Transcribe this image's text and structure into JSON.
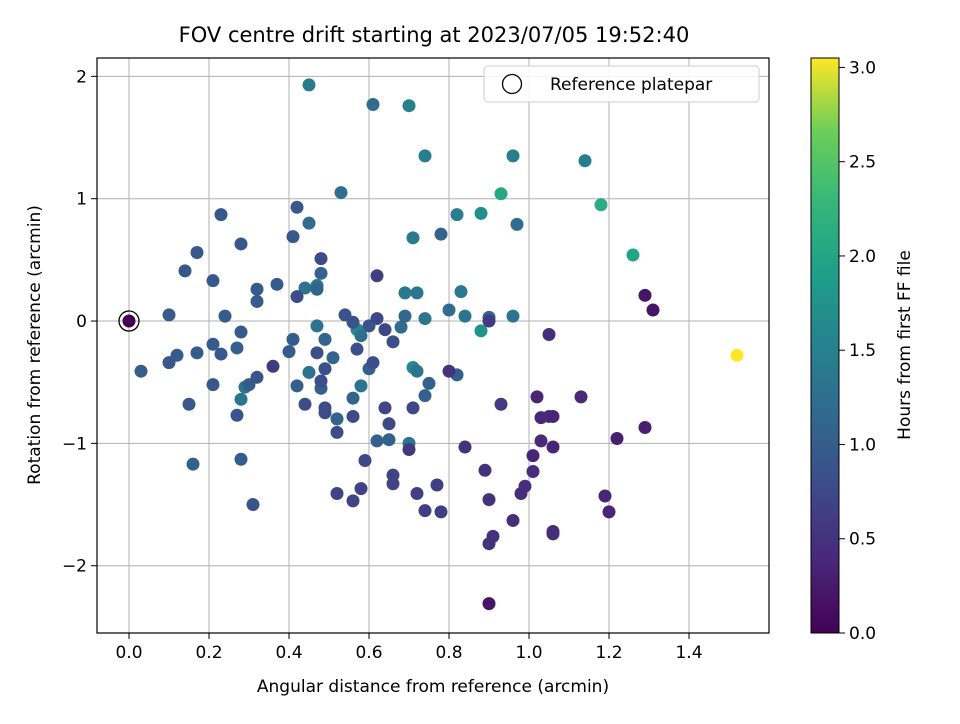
{
  "chart_data": {
    "type": "scatter",
    "title": "FOV centre drift starting at 2023/07/05 19:52:40",
    "xlabel": "Angular distance from reference (arcmin)",
    "ylabel": "Rotation from reference (arcmin)",
    "xlim": [
      -0.08,
      1.6
    ],
    "ylim": [
      -2.55,
      2.15
    ],
    "xticks": [
      0.0,
      0.2,
      0.4,
      0.6,
      0.8,
      1.0,
      1.2,
      1.4
    ],
    "xtick_labels": [
      "0.0",
      "0.2",
      "0.4",
      "0.6",
      "0.8",
      "1.0",
      "1.2",
      "1.4"
    ],
    "yticks": [
      -2,
      -1,
      0,
      1,
      2
    ],
    "ytick_labels": [
      "−2",
      "−1",
      "0",
      "1",
      "2"
    ],
    "grid": true,
    "legend": {
      "placement": "top-right",
      "entries": [
        {
          "label": "Reference platepar",
          "marker": "open-circle"
        }
      ]
    },
    "reference_point": {
      "x": 0.0,
      "y": 0.0
    },
    "colorbar": {
      "label": "Hours from first FF file",
      "colormap": "viridis",
      "range": [
        0.0,
        3.05
      ],
      "ticks": [
        0.0,
        0.5,
        1.0,
        1.5,
        2.0,
        2.5,
        3.0
      ],
      "tick_labels": [
        "0.0",
        "0.5",
        "1.0",
        "1.5",
        "2.0",
        "2.5",
        "3.0"
      ]
    },
    "series": [
      {
        "points": [
          {
            "x": 0.0,
            "y": 0.0,
            "c": 0.0
          },
          {
            "x": 1.52,
            "y": -0.28,
            "c": 3.05
          },
          {
            "x": 1.26,
            "y": 0.54,
            "c": 2.0
          },
          {
            "x": 1.18,
            "y": 0.95,
            "c": 2.1
          },
          {
            "x": 0.93,
            "y": 1.04,
            "c": 2.05
          },
          {
            "x": 0.88,
            "y": 0.88,
            "c": 1.7
          },
          {
            "x": 0.88,
            "y": -0.08,
            "c": 1.75
          },
          {
            "x": 0.71,
            "y": -0.38,
            "c": 1.6
          },
          {
            "x": 0.57,
            "y": -0.07,
            "c": 1.6
          },
          {
            "x": 0.45,
            "y": 1.93,
            "c": 1.4
          },
          {
            "x": 0.7,
            "y": 1.76,
            "c": 1.5
          },
          {
            "x": 0.74,
            "y": 1.35,
            "c": 1.45
          },
          {
            "x": 0.96,
            "y": 1.35,
            "c": 1.45
          },
          {
            "x": 1.14,
            "y": 1.31,
            "c": 1.45
          },
          {
            "x": 0.82,
            "y": 0.87,
            "c": 1.45
          },
          {
            "x": 0.71,
            "y": 0.68,
            "c": 1.4
          },
          {
            "x": 0.83,
            "y": 0.24,
            "c": 1.4
          },
          {
            "x": 0.69,
            "y": 0.23,
            "c": 1.4
          },
          {
            "x": 0.72,
            "y": 0.23,
            "c": 1.35
          },
          {
            "x": 0.74,
            "y": 0.02,
            "c": 1.35
          },
          {
            "x": 0.84,
            "y": 0.04,
            "c": 1.35
          },
          {
            "x": 0.96,
            "y": 0.04,
            "c": 1.35
          },
          {
            "x": 0.72,
            "y": -0.41,
            "c": 1.35
          },
          {
            "x": 0.58,
            "y": -0.53,
            "c": 1.35
          },
          {
            "x": 0.7,
            "y": -1.0,
            "c": 1.35
          },
          {
            "x": 0.28,
            "y": -0.64,
            "c": 1.35
          },
          {
            "x": 0.47,
            "y": -0.04,
            "c": 1.3
          },
          {
            "x": 0.29,
            "y": -0.54,
            "c": 1.3
          },
          {
            "x": 0.44,
            "y": 0.27,
            "c": 1.3
          },
          {
            "x": 0.47,
            "y": 0.29,
            "c": 1.3
          },
          {
            "x": 0.45,
            "y": -0.42,
            "c": 1.3
          },
          {
            "x": 0.58,
            "y": -0.12,
            "c": 1.25
          },
          {
            "x": 0.53,
            "y": 1.05,
            "c": 1.25
          },
          {
            "x": 0.61,
            "y": 1.77,
            "c": 1.2
          },
          {
            "x": 0.97,
            "y": 0.79,
            "c": 1.2
          },
          {
            "x": 0.45,
            "y": 0.8,
            "c": 1.2
          },
          {
            "x": 0.8,
            "y": 0.09,
            "c": 1.2
          },
          {
            "x": 0.68,
            "y": -0.05,
            "c": 1.2
          },
          {
            "x": 0.69,
            "y": 0.04,
            "c": 1.15
          },
          {
            "x": 0.78,
            "y": 0.71,
            "c": 1.1
          },
          {
            "x": 0.9,
            "y": 0.03,
            "c": 1.1
          },
          {
            "x": 0.47,
            "y": 0.26,
            "c": 1.1
          },
          {
            "x": 0.48,
            "y": 0.39,
            "c": 1.1
          },
          {
            "x": 0.49,
            "y": -0.15,
            "c": 1.1
          },
          {
            "x": 0.51,
            "y": -0.3,
            "c": 1.1
          },
          {
            "x": 0.56,
            "y": -0.63,
            "c": 1.1
          },
          {
            "x": 0.52,
            "y": -0.8,
            "c": 1.1
          },
          {
            "x": 0.6,
            "y": -0.39,
            "c": 1.05
          },
          {
            "x": 0.62,
            "y": -0.98,
            "c": 1.05
          },
          {
            "x": 0.65,
            "y": -0.97,
            "c": 1.05
          },
          {
            "x": 0.74,
            "y": -0.61,
            "c": 1.05
          },
          {
            "x": 0.75,
            "y": -0.51,
            "c": 1.05
          },
          {
            "x": 0.82,
            "y": -0.44,
            "c": 1.05
          },
          {
            "x": 0.27,
            "y": -0.22,
            "c": 1.05
          },
          {
            "x": 0.42,
            "y": -0.53,
            "c": 1.05
          },
          {
            "x": 0.48,
            "y": -0.55,
            "c": 1.05
          },
          {
            "x": 0.16,
            "y": -1.17,
            "c": 1.05
          },
          {
            "x": 0.1,
            "y": 0.05,
            "c": 1.0
          },
          {
            "x": 0.03,
            "y": -0.41,
            "c": 1.0
          },
          {
            "x": 0.12,
            "y": -0.28,
            "c": 1.0
          },
          {
            "x": 0.17,
            "y": -0.26,
            "c": 1.0
          },
          {
            "x": 0.24,
            "y": 0.04,
            "c": 1.0
          },
          {
            "x": 0.21,
            "y": -0.19,
            "c": 1.0
          },
          {
            "x": 0.28,
            "y": -1.13,
            "c": 1.0
          },
          {
            "x": 0.32,
            "y": 0.26,
            "c": 1.0
          },
          {
            "x": 0.32,
            "y": 0.16,
            "c": 1.0
          },
          {
            "x": 0.37,
            "y": 0.3,
            "c": 1.0
          },
          {
            "x": 0.41,
            "y": -0.15,
            "c": 1.0
          },
          {
            "x": 0.4,
            "y": -0.25,
            "c": 1.0
          },
          {
            "x": 0.28,
            "y": -0.09,
            "c": 1.0
          },
          {
            "x": 0.3,
            "y": -0.52,
            "c": 1.0
          },
          {
            "x": 0.15,
            "y": -0.68,
            "c": 0.95
          },
          {
            "x": 0.14,
            "y": 0.41,
            "c": 0.95
          },
          {
            "x": 0.17,
            "y": 0.56,
            "c": 0.95
          },
          {
            "x": 0.23,
            "y": 0.87,
            "c": 0.95
          },
          {
            "x": 0.28,
            "y": 0.63,
            "c": 0.95
          },
          {
            "x": 0.41,
            "y": 0.69,
            "c": 0.95
          },
          {
            "x": 0.42,
            "y": 0.93,
            "c": 0.95
          },
          {
            "x": 0.21,
            "y": 0.33,
            "c": 0.95
          },
          {
            "x": 0.1,
            "y": -0.34,
            "c": 0.95
          },
          {
            "x": 0.23,
            "y": -0.27,
            "c": 0.95
          },
          {
            "x": 0.21,
            "y": -0.52,
            "c": 0.95
          },
          {
            "x": 0.27,
            "y": -0.77,
            "c": 0.9
          },
          {
            "x": 0.32,
            "y": -0.46,
            "c": 0.9
          },
          {
            "x": 0.31,
            "y": -1.5,
            "c": 0.9
          },
          {
            "x": 0.54,
            "y": 0.05,
            "c": 0.9
          },
          {
            "x": 0.56,
            "y": -0.01,
            "c": 0.9
          },
          {
            "x": 0.6,
            "y": -0.04,
            "c": 0.9
          },
          {
            "x": 0.57,
            "y": -0.23,
            "c": 0.85
          },
          {
            "x": 0.61,
            "y": -0.34,
            "c": 0.85
          },
          {
            "x": 0.66,
            "y": -0.17,
            "c": 0.85
          },
          {
            "x": 0.47,
            "y": -0.26,
            "c": 0.85
          },
          {
            "x": 0.48,
            "y": -0.49,
            "c": 0.85
          },
          {
            "x": 0.49,
            "y": -0.39,
            "c": 0.85
          },
          {
            "x": 0.56,
            "y": -0.78,
            "c": 0.8
          },
          {
            "x": 0.49,
            "y": -0.71,
            "c": 0.8
          },
          {
            "x": 0.49,
            "y": -0.75,
            "c": 0.8
          },
          {
            "x": 0.44,
            "y": -0.68,
            "c": 0.8
          },
          {
            "x": 0.52,
            "y": -0.91,
            "c": 0.8
          },
          {
            "x": 0.42,
            "y": 0.2,
            "c": 0.8
          },
          {
            "x": 0.48,
            "y": 0.51,
            "c": 0.8
          },
          {
            "x": 0.64,
            "y": -0.07,
            "c": 0.75
          },
          {
            "x": 0.62,
            "y": 0.02,
            "c": 0.75
          },
          {
            "x": 0.64,
            "y": -0.71,
            "c": 0.75
          },
          {
            "x": 0.65,
            "y": -0.84,
            "c": 0.75
          },
          {
            "x": 0.71,
            "y": -0.71,
            "c": 0.75
          },
          {
            "x": 0.59,
            "y": -1.14,
            "c": 0.75
          },
          {
            "x": 0.58,
            "y": -1.37,
            "c": 0.7
          },
          {
            "x": 0.56,
            "y": -1.47,
            "c": 0.7
          },
          {
            "x": 0.52,
            "y": -1.41,
            "c": 0.7
          },
          {
            "x": 0.66,
            "y": -1.26,
            "c": 0.7
          },
          {
            "x": 0.66,
            "y": -1.33,
            "c": 0.7
          },
          {
            "x": 0.72,
            "y": -1.41,
            "c": 0.65
          },
          {
            "x": 0.74,
            "y": -1.55,
            "c": 0.65
          },
          {
            "x": 0.78,
            "y": -1.56,
            "c": 0.65
          },
          {
            "x": 0.77,
            "y": -1.34,
            "c": 0.65
          },
          {
            "x": 0.62,
            "y": 0.37,
            "c": 0.65
          },
          {
            "x": 0.93,
            "y": -0.68,
            "c": 0.6
          },
          {
            "x": 0.9,
            "y": 0.0,
            "c": 0.6
          },
          {
            "x": 0.36,
            "y": -0.37,
            "c": 0.6
          },
          {
            "x": 0.7,
            "y": -1.05,
            "c": 0.55
          },
          {
            "x": 0.8,
            "y": -0.41,
            "c": 0.5
          },
          {
            "x": 0.84,
            "y": -1.03,
            "c": 0.5
          },
          {
            "x": 0.89,
            "y": -1.22,
            "c": 0.5
          },
          {
            "x": 0.9,
            "y": -1.46,
            "c": 0.5
          },
          {
            "x": 0.91,
            "y": -1.76,
            "c": 0.5
          },
          {
            "x": 0.9,
            "y": -1.82,
            "c": 0.5
          },
          {
            "x": 0.96,
            "y": -1.63,
            "c": 0.45
          },
          {
            "x": 0.98,
            "y": -1.41,
            "c": 0.45
          },
          {
            "x": 0.99,
            "y": -1.35,
            "c": 0.45
          },
          {
            "x": 1.01,
            "y": -1.23,
            "c": 0.45
          },
          {
            "x": 1.06,
            "y": -1.74,
            "c": 0.45
          },
          {
            "x": 1.06,
            "y": -1.72,
            "c": 0.45
          },
          {
            "x": 1.05,
            "y": -0.11,
            "c": 0.45
          },
          {
            "x": 1.03,
            "y": -0.79,
            "c": 0.4
          },
          {
            "x": 1.05,
            "y": -0.78,
            "c": 0.4
          },
          {
            "x": 1.03,
            "y": -0.98,
            "c": 0.4
          },
          {
            "x": 1.06,
            "y": -1.03,
            "c": 0.35
          },
          {
            "x": 1.06,
            "y": -0.78,
            "c": 0.35
          },
          {
            "x": 1.01,
            "y": -1.1,
            "c": 0.35
          },
          {
            "x": 1.02,
            "y": -0.62,
            "c": 0.35
          },
          {
            "x": 1.13,
            "y": -0.62,
            "c": 0.4
          },
          {
            "x": 1.19,
            "y": -1.43,
            "c": 0.35
          },
          {
            "x": 1.2,
            "y": -1.56,
            "c": 0.35
          },
          {
            "x": 1.22,
            "y": -0.96,
            "c": 0.3
          },
          {
            "x": 1.29,
            "y": -0.87,
            "c": 0.3
          },
          {
            "x": 1.29,
            "y": 0.21,
            "c": 0.2
          },
          {
            "x": 1.31,
            "y": 0.09,
            "c": 0.2
          },
          {
            "x": 0.9,
            "y": -2.31,
            "c": 0.2
          }
        ]
      }
    ]
  }
}
